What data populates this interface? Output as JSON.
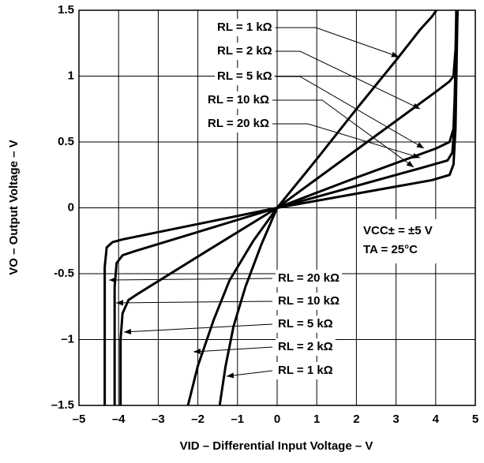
{
  "chart_data": {
    "type": "line",
    "xlabel": "VID – Differential Input Voltage – V",
    "ylabel": "VO – Output Voltage – V",
    "annotations": [
      "VCC± = ±5 V",
      "TA = 25°C"
    ],
    "xlim": [
      -5,
      5
    ],
    "ylim": [
      -1.5,
      1.5
    ],
    "xticks": [
      {
        "value": -5,
        "label": "–5"
      },
      {
        "value": -4,
        "label": "–4"
      },
      {
        "value": -3,
        "label": "–3"
      },
      {
        "value": -2,
        "label": "–2"
      },
      {
        "value": -1,
        "label": "–1"
      },
      0,
      1,
      2,
      3,
      4,
      5
    ],
    "yticks": [
      {
        "value": -1.5,
        "label": "–1.5"
      },
      {
        "value": -1,
        "label": "–1"
      },
      {
        "value": -0.5,
        "label": "-0.5"
      },
      0,
      0.5,
      1,
      1.5
    ],
    "grid": true,
    "series": [
      {
        "name": "RL = 1 kΩ",
        "color": "#000000",
        "x": [
          -1.45,
          -1.3,
          -1.1,
          -0.8,
          -0.4,
          0,
          1,
          2,
          3,
          3.6,
          3.9,
          4.02
        ],
        "values": [
          -1.5,
          -1.2,
          -0.9,
          -0.6,
          -0.28,
          0,
          0.37,
          0.75,
          1.12,
          1.35,
          1.45,
          1.5
        ]
      },
      {
        "name": "RL = 2 kΩ",
        "color": "#000000",
        "x": [
          -2.25,
          -2.0,
          -1.6,
          -1.2,
          -0.6,
          0,
          1,
          2,
          3,
          4,
          4.35,
          4.45,
          4.5,
          4.55
        ],
        "values": [
          -1.5,
          -1.2,
          -0.85,
          -0.55,
          -0.25,
          0,
          0.22,
          0.44,
          0.66,
          0.88,
          0.96,
          1.0,
          1.2,
          1.5
        ]
      },
      {
        "name": "RL = 5 kΩ",
        "color": "#000000",
        "x": [
          -3.95,
          -3.95,
          -3.9,
          -3.75,
          -3.5,
          -2,
          0,
          2,
          4,
          4.35,
          4.45,
          4.5,
          4.55
        ],
        "values": [
          -1.5,
          -1.0,
          -0.8,
          -0.7,
          -0.65,
          -0.37,
          0,
          0.23,
          0.45,
          0.5,
          0.6,
          1.0,
          1.5
        ]
      },
      {
        "name": "RL = 10 kΩ",
        "color": "#000000",
        "x": [
          -4.1,
          -4.1,
          -4.05,
          -3.9,
          -3.6,
          0,
          3.6,
          4.3,
          4.42,
          4.47,
          4.52
        ],
        "values": [
          -1.5,
          -0.6,
          -0.42,
          -0.36,
          -0.33,
          0,
          0.3,
          0.36,
          0.42,
          0.6,
          1.5
        ]
      },
      {
        "name": "RL = 20 kΩ",
        "color": "#000000",
        "x": [
          -4.35,
          -4.35,
          -4.3,
          -4.15,
          -3.9,
          0,
          3.9,
          4.35,
          4.45,
          4.5,
          4.55
        ],
        "values": [
          -1.5,
          -0.45,
          -0.3,
          -0.26,
          -0.24,
          0,
          0.21,
          0.25,
          0.33,
          0.6,
          1.5
        ]
      }
    ]
  }
}
